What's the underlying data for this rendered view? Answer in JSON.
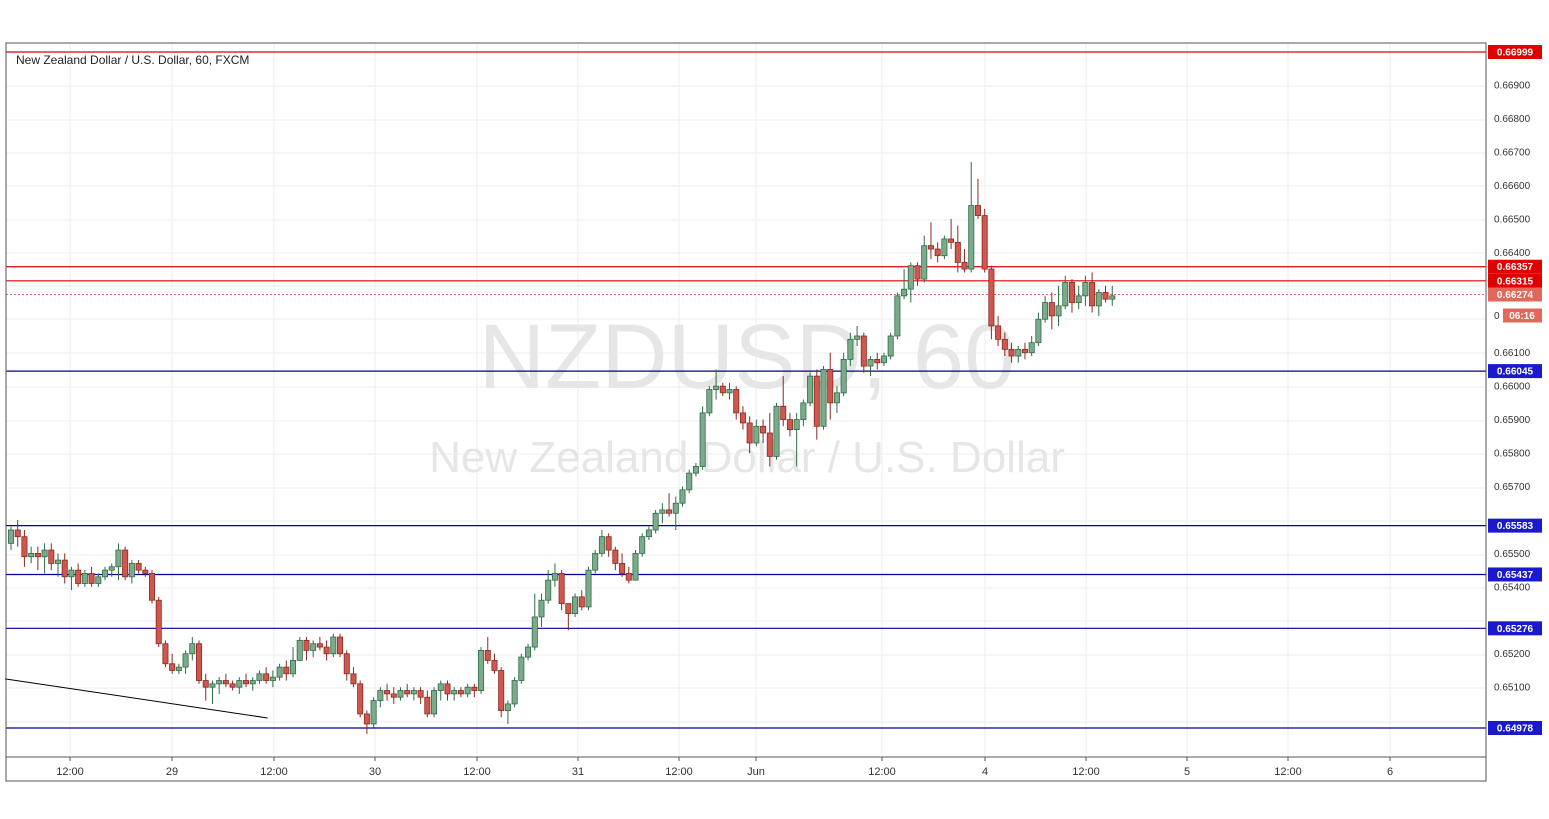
{
  "chart_data": {
    "type": "candlestick",
    "title": "New Zealand Dollar / U.S. Dollar, 60, FXCM",
    "watermark": {
      "symbol": "NZDUSD, 60",
      "name": "New Zealand Dollar / U.S. Dollar"
    },
    "price_axis_ticks": [
      "0.66900",
      "0.66800",
      "0.66700",
      "0.66600",
      "0.66500",
      "0.66400",
      "0.66100",
      "0.66000",
      "0.65900",
      "0.65800",
      "0.65700",
      "0.65500",
      "0.65400",
      "0.65200",
      "0.65100"
    ],
    "time_axis_ticks": [
      "12:00",
      "29",
      "12:00",
      "30",
      "12:00",
      "31",
      "12:00",
      "Jun",
      "12:00",
      "4",
      "12:00",
      "5",
      "12:00",
      "6"
    ],
    "ylim": [
      0.649,
      0.6703
    ],
    "levels": [
      {
        "value": "0.66999",
        "color": "#e00000",
        "label_bg": "#e00000"
      },
      {
        "value": "0.66357",
        "color": "#e00000",
        "label_bg": "#e00000"
      },
      {
        "value": "0.66315",
        "color": "#e00000",
        "label_bg": "#e00000"
      },
      {
        "value": "0.66045",
        "color": "#000099",
        "label_bg": "#1a1acc"
      },
      {
        "value": "0.65583",
        "color": "#000099",
        "label_bg": "#1a1acc"
      },
      {
        "value": "0.65437",
        "color": "#000099",
        "label_bg": "#1a1acc"
      },
      {
        "value": "0.65276",
        "color": "#000099",
        "label_bg": "#1a1acc"
      },
      {
        "value": "0.64978",
        "color": "#000099",
        "label_bg": "#1a1acc"
      }
    ],
    "current_price": {
      "value": "0.66274",
      "countdown": "06:16",
      "color": "#e0695a"
    },
    "countdown_hidden_price_fragment": "0",
    "trendline": {
      "from": {
        "bar": 0,
        "price": 0.65125
      },
      "to": {
        "bar": 33,
        "price": 0.65008
      },
      "color": "#000000"
    },
    "candles": [
      [
        0.6553,
        0.6558,
        0.6551,
        0.6557
      ],
      [
        0.6557,
        0.656,
        0.6552,
        0.6555
      ],
      [
        0.6555,
        0.6557,
        0.6546,
        0.6549
      ],
      [
        0.6549,
        0.6552,
        0.6547,
        0.655
      ],
      [
        0.655,
        0.6552,
        0.6545,
        0.6549
      ],
      [
        0.6549,
        0.6553,
        0.6544,
        0.6551
      ],
      [
        0.6551,
        0.6553,
        0.6545,
        0.6547
      ],
      [
        0.6547,
        0.655,
        0.6543,
        0.6548
      ],
      [
        0.6548,
        0.655,
        0.6541,
        0.6543
      ],
      [
        0.6543,
        0.6546,
        0.6539,
        0.6545
      ],
      [
        0.6545,
        0.6547,
        0.654,
        0.6541
      ],
      [
        0.6541,
        0.6545,
        0.654,
        0.6544
      ],
      [
        0.6544,
        0.6546,
        0.654,
        0.6541
      ],
      [
        0.6541,
        0.6544,
        0.654,
        0.6543
      ],
      [
        0.6543,
        0.6546,
        0.6542,
        0.6545
      ],
      [
        0.6545,
        0.6547,
        0.6543,
        0.6546
      ],
      [
        0.6546,
        0.6553,
        0.6542,
        0.6551
      ],
      [
        0.6551,
        0.6552,
        0.6542,
        0.6543
      ],
      [
        0.6543,
        0.6548,
        0.6541,
        0.6547
      ],
      [
        0.6547,
        0.6548,
        0.6544,
        0.6545
      ],
      [
        0.6545,
        0.6546,
        0.6543,
        0.6544
      ],
      [
        0.6544,
        0.6545,
        0.6535,
        0.6536
      ],
      [
        0.6536,
        0.6537,
        0.6522,
        0.6523
      ],
      [
        0.6523,
        0.6524,
        0.6516,
        0.6517
      ],
      [
        0.6517,
        0.652,
        0.6514,
        0.6515
      ],
      [
        0.6515,
        0.6517,
        0.6514,
        0.6516
      ],
      [
        0.6516,
        0.6521,
        0.6514,
        0.652
      ],
      [
        0.652,
        0.6525,
        0.6518,
        0.6523
      ],
      [
        0.6523,
        0.6524,
        0.6511,
        0.6512
      ],
      [
        0.6512,
        0.6514,
        0.6506,
        0.651
      ],
      [
        0.651,
        0.6512,
        0.6505,
        0.6511
      ],
      [
        0.6511,
        0.6513,
        0.6508,
        0.6512
      ],
      [
        0.6512,
        0.6514,
        0.651,
        0.6511
      ],
      [
        0.6511,
        0.6512,
        0.6509,
        0.651
      ],
      [
        0.651,
        0.6513,
        0.6508,
        0.6512
      ],
      [
        0.6512,
        0.6514,
        0.651,
        0.6511
      ],
      [
        0.6511,
        0.6513,
        0.6509,
        0.6512
      ],
      [
        0.6512,
        0.6515,
        0.6511,
        0.6514
      ],
      [
        0.6514,
        0.6516,
        0.6511,
        0.6512
      ],
      [
        0.6512,
        0.6515,
        0.651,
        0.6513
      ],
      [
        0.6513,
        0.6517,
        0.6512,
        0.6516
      ],
      [
        0.6516,
        0.6518,
        0.6512,
        0.6514
      ],
      [
        0.6514,
        0.6522,
        0.6513,
        0.6518
      ],
      [
        0.6518,
        0.6525,
        0.6518,
        0.6524
      ],
      [
        0.6524,
        0.6525,
        0.6518,
        0.6521
      ],
      [
        0.6521,
        0.6524,
        0.6519,
        0.6523
      ],
      [
        0.6523,
        0.6525,
        0.6521,
        0.6522
      ],
      [
        0.6522,
        0.6524,
        0.6518,
        0.652
      ],
      [
        0.652,
        0.6526,
        0.6519,
        0.6525
      ],
      [
        0.6525,
        0.6526,
        0.6519,
        0.652
      ],
      [
        0.652,
        0.6521,
        0.6512,
        0.6514
      ],
      [
        0.6514,
        0.6516,
        0.651,
        0.6511
      ],
      [
        0.6511,
        0.6512,
        0.6501,
        0.6502
      ],
      [
        0.6502,
        0.6503,
        0.6496,
        0.6499
      ],
      [
        0.6499,
        0.6507,
        0.6498,
        0.6506
      ],
      [
        0.6506,
        0.651,
        0.6504,
        0.6509
      ],
      [
        0.6509,
        0.6511,
        0.6506,
        0.6508
      ],
      [
        0.6508,
        0.651,
        0.6505,
        0.6507
      ],
      [
        0.6507,
        0.651,
        0.6506,
        0.6509
      ],
      [
        0.6509,
        0.6511,
        0.6507,
        0.6508
      ],
      [
        0.6508,
        0.651,
        0.6506,
        0.6509
      ],
      [
        0.6509,
        0.651,
        0.6505,
        0.6507
      ],
      [
        0.6507,
        0.6509,
        0.6501,
        0.6502
      ],
      [
        0.6502,
        0.651,
        0.6501,
        0.6509
      ],
      [
        0.6509,
        0.6512,
        0.6506,
        0.6511
      ],
      [
        0.6511,
        0.6512,
        0.6506,
        0.6508
      ],
      [
        0.6508,
        0.651,
        0.6506,
        0.6509
      ],
      [
        0.6509,
        0.651,
        0.6507,
        0.6508
      ],
      [
        0.6508,
        0.6511,
        0.6507,
        0.651
      ],
      [
        0.651,
        0.6511,
        0.6507,
        0.6509
      ],
      [
        0.6509,
        0.6522,
        0.6508,
        0.6521
      ],
      [
        0.6521,
        0.6525,
        0.6517,
        0.6518
      ],
      [
        0.6518,
        0.652,
        0.6514,
        0.6515
      ],
      [
        0.6515,
        0.6516,
        0.6501,
        0.6503
      ],
      [
        0.6503,
        0.6506,
        0.6499,
        0.6505
      ],
      [
        0.6505,
        0.6513,
        0.6504,
        0.6512
      ],
      [
        0.6512,
        0.652,
        0.6511,
        0.6519
      ],
      [
        0.6519,
        0.6523,
        0.6518,
        0.6522
      ],
      [
        0.6522,
        0.6538,
        0.6521,
        0.6531
      ],
      [
        0.6531,
        0.6538,
        0.6528,
        0.6536
      ],
      [
        0.6536,
        0.6545,
        0.6535,
        0.6542
      ],
      [
        0.6542,
        0.6547,
        0.654,
        0.6544
      ],
      [
        0.6544,
        0.6545,
        0.6533,
        0.6535
      ],
      [
        0.6535,
        0.6535,
        0.6527,
        0.6532
      ],
      [
        0.6532,
        0.6538,
        0.6531,
        0.6537
      ],
      [
        0.6537,
        0.6539,
        0.6533,
        0.6534
      ],
      [
        0.6534,
        0.6546,
        0.6533,
        0.6545
      ],
      [
        0.6545,
        0.6551,
        0.6544,
        0.655
      ],
      [
        0.655,
        0.6557,
        0.6549,
        0.6555
      ],
      [
        0.6555,
        0.6556,
        0.6549,
        0.6551
      ],
      [
        0.6551,
        0.6552,
        0.6545,
        0.6547
      ],
      [
        0.6547,
        0.655,
        0.6543,
        0.6544
      ],
      [
        0.6544,
        0.6546,
        0.6541,
        0.6542
      ],
      [
        0.6542,
        0.6551,
        0.6542,
        0.655
      ],
      [
        0.655,
        0.6556,
        0.6549,
        0.6555
      ],
      [
        0.6555,
        0.6558,
        0.6554,
        0.6557
      ],
      [
        0.6557,
        0.6563,
        0.6556,
        0.6562
      ],
      [
        0.6562,
        0.6565,
        0.6559,
        0.6563
      ],
      [
        0.6563,
        0.6568,
        0.6561,
        0.6562
      ],
      [
        0.6562,
        0.6567,
        0.6557,
        0.6565
      ],
      [
        0.6565,
        0.657,
        0.6564,
        0.6569
      ],
      [
        0.6569,
        0.6575,
        0.6568,
        0.6574
      ],
      [
        0.6574,
        0.6577,
        0.6573,
        0.6576
      ],
      [
        0.6576,
        0.6594,
        0.6575,
        0.6592
      ],
      [
        0.6592,
        0.66,
        0.6591,
        0.6599
      ],
      [
        0.6599,
        0.6605,
        0.6596,
        0.66
      ],
      [
        0.66,
        0.6601,
        0.6597,
        0.6598
      ],
      [
        0.6598,
        0.6601,
        0.6596,
        0.6599
      ],
      [
        0.6599,
        0.66,
        0.659,
        0.6592
      ],
      [
        0.6592,
        0.6594,
        0.6587,
        0.6589
      ],
      [
        0.6589,
        0.6591,
        0.658,
        0.6583
      ],
      [
        0.6583,
        0.659,
        0.6582,
        0.6588
      ],
      [
        0.6588,
        0.659,
        0.6583,
        0.6586
      ],
      [
        0.6586,
        0.6592,
        0.6576,
        0.6579
      ],
      [
        0.6579,
        0.6595,
        0.6578,
        0.6594
      ],
      [
        0.6594,
        0.6603,
        0.6588,
        0.659
      ],
      [
        0.659,
        0.6592,
        0.6585,
        0.6587
      ],
      [
        0.6587,
        0.6592,
        0.6576,
        0.659
      ],
      [
        0.659,
        0.6596,
        0.6588,
        0.6595
      ],
      [
        0.6595,
        0.6604,
        0.6594,
        0.6603
      ],
      [
        0.6603,
        0.6605,
        0.6584,
        0.6588
      ],
      [
        0.6588,
        0.6606,
        0.6587,
        0.6605
      ],
      [
        0.6605,
        0.661,
        0.659,
        0.6595
      ],
      [
        0.6595,
        0.66,
        0.6592,
        0.6598
      ],
      [
        0.6598,
        0.661,
        0.6597,
        0.6608
      ],
      [
        0.6608,
        0.6616,
        0.6606,
        0.6614
      ],
      [
        0.6614,
        0.6618,
        0.6612,
        0.6615
      ],
      [
        0.6615,
        0.6616,
        0.6604,
        0.6606
      ],
      [
        0.6606,
        0.6609,
        0.6603,
        0.6608
      ],
      [
        0.6608,
        0.661,
        0.6605,
        0.6607
      ],
      [
        0.6607,
        0.661,
        0.6606,
        0.6609
      ],
      [
        0.6609,
        0.6616,
        0.6608,
        0.6615
      ],
      [
        0.6615,
        0.6628,
        0.6614,
        0.6627
      ],
      [
        0.6627,
        0.6635,
        0.6626,
        0.6629
      ],
      [
        0.6629,
        0.6637,
        0.6625,
        0.6636
      ],
      [
        0.6636,
        0.6637,
        0.663,
        0.6632
      ],
      [
        0.6632,
        0.6645,
        0.6631,
        0.6642
      ],
      [
        0.6642,
        0.6649,
        0.6638,
        0.6641
      ],
      [
        0.6641,
        0.6643,
        0.6637,
        0.6639
      ],
      [
        0.6639,
        0.6645,
        0.6638,
        0.6644
      ],
      [
        0.6644,
        0.665,
        0.6641,
        0.6643
      ],
      [
        0.6643,
        0.6648,
        0.6634,
        0.6637
      ],
      [
        0.6637,
        0.6641,
        0.6634,
        0.6635
      ],
      [
        0.6635,
        0.6667,
        0.6634,
        0.6654
      ],
      [
        0.6654,
        0.6662,
        0.665,
        0.6651
      ],
      [
        0.6651,
        0.6653,
        0.6634,
        0.6635
      ],
      [
        0.6635,
        0.6636,
        0.6614,
        0.6618
      ],
      [
        0.6618,
        0.6621,
        0.6612,
        0.6614
      ],
      [
        0.6614,
        0.6616,
        0.6609,
        0.6611
      ],
      [
        0.6611,
        0.6613,
        0.6607,
        0.6609
      ],
      [
        0.6609,
        0.6612,
        0.6607,
        0.6611
      ],
      [
        0.6611,
        0.6613,
        0.6608,
        0.661
      ],
      [
        0.661,
        0.6615,
        0.6609,
        0.6613
      ],
      [
        0.6613,
        0.6622,
        0.6612,
        0.662
      ],
      [
        0.662,
        0.6627,
        0.6619,
        0.6625
      ],
      [
        0.6625,
        0.6628,
        0.6617,
        0.6621
      ],
      [
        0.6621,
        0.663,
        0.6618,
        0.6624
      ],
      [
        0.6624,
        0.6633,
        0.6623,
        0.6631
      ],
      [
        0.6631,
        0.6632,
        0.6622,
        0.6625
      ],
      [
        0.6625,
        0.663,
        0.6623,
        0.6627
      ],
      [
        0.6627,
        0.6633,
        0.6624,
        0.6631
      ],
      [
        0.6631,
        0.6634,
        0.6622,
        0.6624
      ],
      [
        0.6624,
        0.6629,
        0.6621,
        0.6628
      ],
      [
        0.6628,
        0.663,
        0.6625,
        0.6626
      ],
      [
        0.6626,
        0.663,
        0.6624,
        0.6627
      ]
    ],
    "colors": {
      "up": "#7cab8c",
      "up_border": "#2e6b46",
      "down": "#d0574d",
      "down_border": "#8a2a22"
    }
  }
}
